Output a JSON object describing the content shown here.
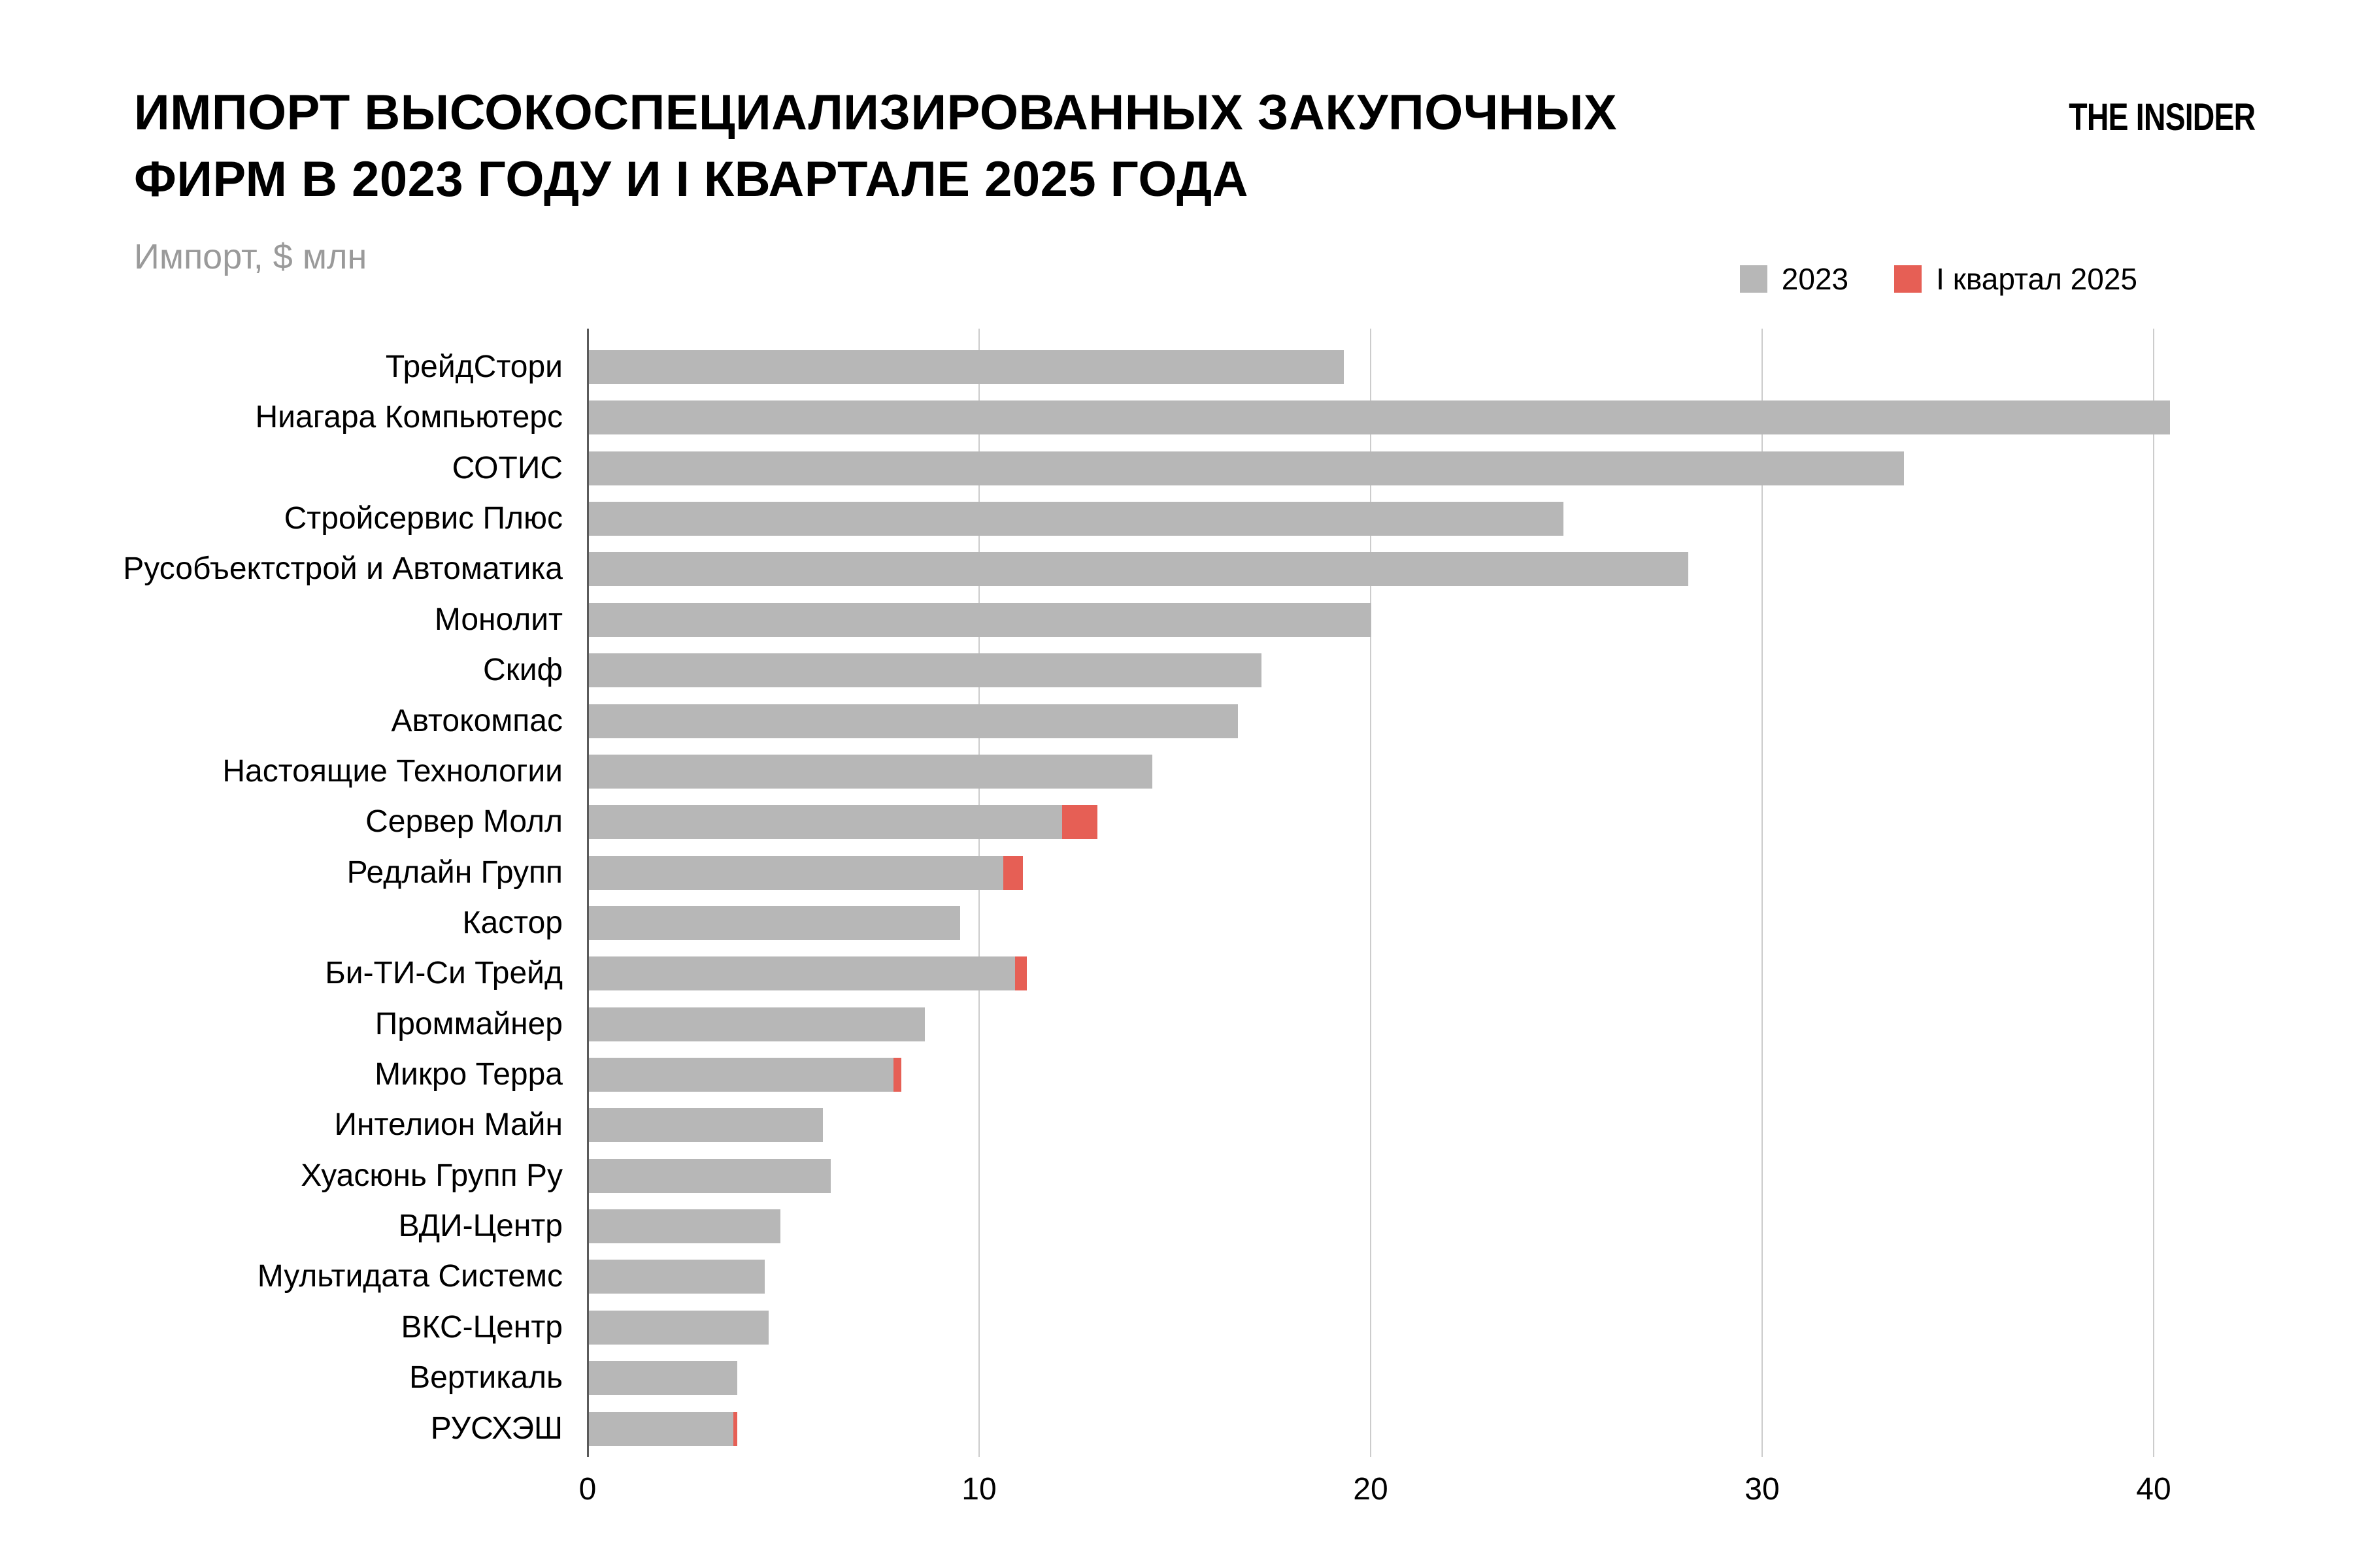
{
  "header": {
    "title_lines": [
      "ИМПОРТ ВЫСОКОСПЕЦИАЛИЗИРОВАННЫХ ЗАКУПОЧНЫХ",
      "ФИРМ В 2023 ГОДУ И I КВАРТАЛЕ 2025 ГОДА"
    ],
    "subtitle": "Импорт, $ млн",
    "logo": "THE INSIDER"
  },
  "legend": [
    {
      "label": "2023",
      "color": "#b7b7b7"
    },
    {
      "label": "I квартал 2025",
      "color": "#e65f55"
    }
  ],
  "colors": {
    "bar_2023": "#b7b7b7",
    "bar_q1_2025": "#e65f55",
    "gridline": "#cccccc",
    "axis": "#5a5a5a",
    "subtitle": "#9a9a9a",
    "background": "#ffffff",
    "text": "#000000"
  },
  "chart_data": {
    "type": "bar",
    "orientation": "horizontal",
    "stacked": true,
    "title": "ИМПОРТ ВЫСОКОСПЕЦИАЛИЗИРОВАННЫХ ЗАКУПОЧНЫХ ФИРМ В 2023 ГОДУ И I КВАРТАЛЕ 2025 ГОДА",
    "xlabel": "Импорт, $ млн",
    "ylabel": "",
    "categories": [
      "ТрейдСтори",
      "Ниагара Компьютерс",
      "СОТИС",
      "Стройсервис Плюс",
      "Русобъектстрой и Автоматика",
      "Монолит",
      "Скиф",
      "Автокомпас",
      "Настоящие Технологии",
      "Сервер Молл",
      "Редлайн Групп",
      "Кастор",
      "Би-ТИ-Си Трейд",
      "Проммайнер",
      "Микро Терра",
      "Интелион Майн",
      "Хуасюнь Групп Ру",
      "ВДИ-Центр",
      "Мультидата Системс",
      "ВКС-Центр",
      "Вертикаль",
      "РУСХЭШ"
    ],
    "series": [
      {
        "name": "2023",
        "values": [
          19.3,
          40.4,
          33.6,
          24.9,
          28.1,
          20.0,
          17.2,
          16.6,
          14.4,
          12.1,
          10.6,
          9.5,
          10.9,
          8.6,
          7.8,
          6.0,
          6.2,
          4.9,
          4.5,
          4.6,
          3.8,
          3.7
        ]
      },
      {
        "name": "I квартал 2025",
        "values": [
          0,
          0,
          0,
          0,
          0,
          0,
          0,
          0,
          0,
          0.9,
          0.5,
          0,
          0.3,
          0,
          0.2,
          0,
          0,
          0,
          0,
          0,
          0,
          0.1
        ]
      }
    ],
    "x_ticks": [
      0,
      10,
      20,
      30,
      40
    ],
    "xlim": [
      0,
      42.5
    ],
    "grid": "vertical",
    "legend_position": "top-right"
  }
}
